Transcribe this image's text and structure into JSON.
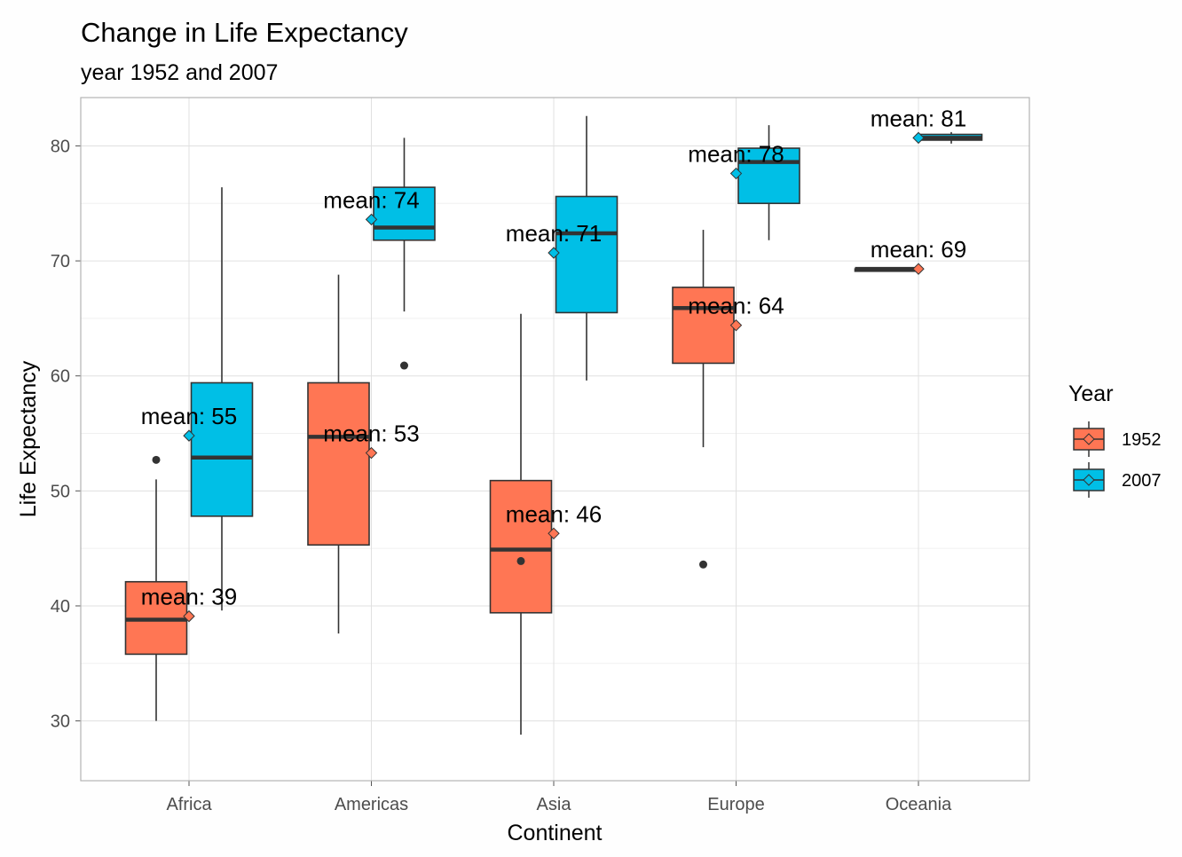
{
  "chart_data": {
    "type": "boxplot",
    "title": "Change in Life Expectancy",
    "subtitle": "year 1952 and 2007",
    "xlabel": "Continent",
    "ylabel": "Life Expectancy",
    "ylim": [
      24.8,
      84.2
    ],
    "yticks": [
      30,
      40,
      50,
      60,
      70,
      80
    ],
    "grid": true,
    "categories": [
      "Africa",
      "Americas",
      "Asia",
      "Europe",
      "Oceania"
    ],
    "legend": {
      "title": "Year",
      "position": "right",
      "entries": [
        {
          "label": "1952",
          "color": "#FF7654"
        },
        {
          "label": "2007",
          "color": "#00BFE6"
        }
      ]
    },
    "series": [
      {
        "name": "1952",
        "color": "#FF7654",
        "boxes": [
          {
            "category": "Africa",
            "whisker_low": 30.0,
            "q1": 35.8,
            "median": 38.8,
            "q3": 42.1,
            "whisker_high": 51.0,
            "outliers": [
              52.7
            ],
            "mean": 39.1,
            "mean_label": "mean: 39"
          },
          {
            "category": "Americas",
            "whisker_low": 37.6,
            "q1": 45.3,
            "median": 54.7,
            "q3": 59.4,
            "whisker_high": 68.8,
            "outliers": [],
            "mean": 53.3,
            "mean_label": "mean: 53"
          },
          {
            "category": "Asia",
            "whisker_low": 28.8,
            "q1": 39.4,
            "median": 44.9,
            "q3": 50.9,
            "whisker_high": 65.4,
            "outliers": [
              43.9
            ],
            "mean": 46.3,
            "mean_label": "mean: 46"
          },
          {
            "category": "Europe",
            "whisker_low": 53.8,
            "q1": 61.1,
            "median": 65.9,
            "q3": 67.7,
            "whisker_high": 72.7,
            "outliers": [
              43.6
            ],
            "mean": 64.4,
            "mean_label": "mean: 64"
          },
          {
            "category": "Oceania",
            "whisker_low": 69.1,
            "q1": 69.1,
            "median": 69.3,
            "q3": 69.3,
            "whisker_high": 69.4,
            "outliers": [],
            "mean": 69.3,
            "mean_label": "mean: 69"
          }
        ]
      },
      {
        "name": "2007",
        "color": "#00BFE6",
        "boxes": [
          {
            "category": "Africa",
            "whisker_low": 39.6,
            "q1": 47.8,
            "median": 52.9,
            "q3": 59.4,
            "whisker_high": 76.4,
            "outliers": [],
            "mean": 54.8,
            "mean_label": "mean: 55"
          },
          {
            "category": "Americas",
            "whisker_low": 65.6,
            "q1": 71.8,
            "median": 72.9,
            "q3": 76.4,
            "whisker_high": 80.7,
            "outliers": [
              60.9
            ],
            "mean": 73.6,
            "mean_label": "mean: 74"
          },
          {
            "category": "Asia",
            "whisker_low": 59.6,
            "q1": 65.5,
            "median": 72.4,
            "q3": 75.6,
            "whisker_high": 82.6,
            "outliers": [],
            "mean": 70.7,
            "mean_label": "mean: 71"
          },
          {
            "category": "Europe",
            "whisker_low": 71.8,
            "q1": 75.0,
            "median": 78.6,
            "q3": 79.8,
            "whisker_high": 81.8,
            "outliers": [],
            "mean": 77.6,
            "mean_label": "mean: 78"
          },
          {
            "category": "Oceania",
            "whisker_low": 80.2,
            "q1": 80.5,
            "median": 80.7,
            "q3": 81.0,
            "whisker_high": 81.2,
            "outliers": [],
            "mean": 80.7,
            "mean_label": "mean: 81"
          }
        ]
      }
    ]
  }
}
